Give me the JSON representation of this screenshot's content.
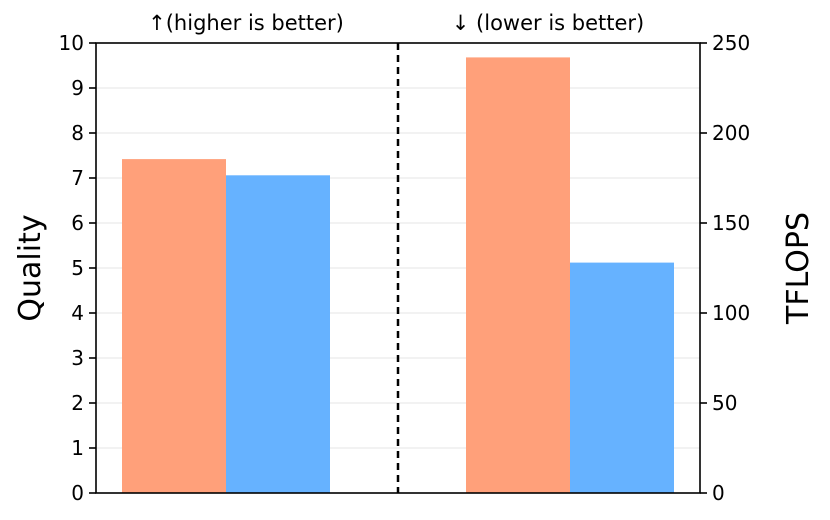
{
  "chart_data": {
    "type": "bar",
    "panels": [
      {
        "title": "↑(higher is better)",
        "axis": "left",
        "values": [
          7.42,
          7.06
        ]
      },
      {
        "title": "↓  (lower is better)",
        "axis": "right",
        "values": [
          242.0,
          128.0
        ]
      }
    ],
    "series": [
      {
        "color": "#FFA07A"
      },
      {
        "color": "#66B2FF"
      }
    ],
    "y_left": {
      "label": "Quality",
      "ylim": [
        0,
        10
      ],
      "ticks": [
        "0",
        "1",
        "2",
        "3",
        "4",
        "5",
        "6",
        "7",
        "8",
        "9",
        "10"
      ]
    },
    "y_right": {
      "label": "TFLOPS",
      "ylim": [
        0,
        250
      ],
      "ticks": [
        "0",
        "50",
        "100",
        "150",
        "200",
        "250"
      ]
    },
    "divider": "dashed vertical line between panels",
    "grid": "horizontal, light",
    "legend": "none"
  }
}
